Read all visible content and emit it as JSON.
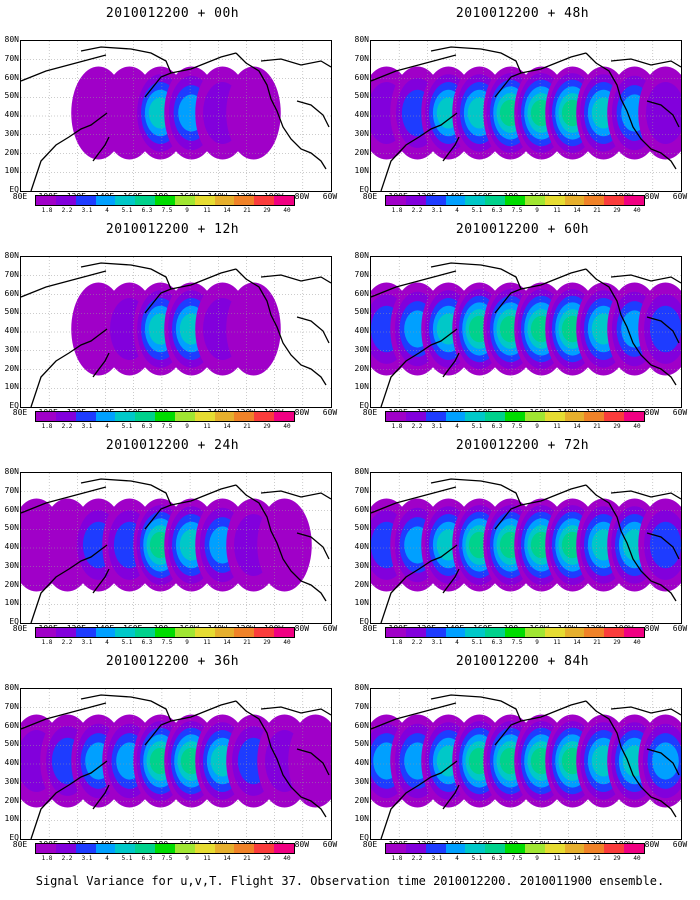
{
  "panels": [
    {
      "title": "2010012200 + 00h",
      "field": [
        0,
        0,
        0.05,
        0.1,
        0.45,
        0.4,
        0.15,
        0.05,
        0,
        0
      ]
    },
    {
      "title": "2010012200 + 48h",
      "field": [
        0.2,
        0.3,
        0.45,
        0.5,
        0.55,
        0.6,
        0.55,
        0.45,
        0.35,
        0.2
      ]
    },
    {
      "title": "2010012200 + 12h",
      "field": [
        0,
        0,
        0.05,
        0.15,
        0.5,
        0.45,
        0.2,
        0.05,
        0,
        0
      ]
    },
    {
      "title": "2010012200 + 60h",
      "field": [
        0.25,
        0.35,
        0.5,
        0.55,
        0.6,
        0.6,
        0.55,
        0.5,
        0.4,
        0.25
      ]
    },
    {
      "title": "2010012200 + 24h",
      "field": [
        0.05,
        0.1,
        0.25,
        0.3,
        0.55,
        0.5,
        0.35,
        0.15,
        0.05,
        0
      ]
    },
    {
      "title": "2010012200 + 72h",
      "field": [
        0.3,
        0.4,
        0.5,
        0.55,
        0.6,
        0.6,
        0.55,
        0.5,
        0.45,
        0.3
      ]
    },
    {
      "title": "2010012200 + 36h",
      "field": [
        0.2,
        0.3,
        0.35,
        0.4,
        0.6,
        0.55,
        0.45,
        0.3,
        0.15,
        0.05
      ]
    },
    {
      "title": "2010012200 + 84h",
      "field": [
        0.35,
        0.4,
        0.5,
        0.55,
        0.6,
        0.6,
        0.55,
        0.5,
        0.45,
        0.35
      ]
    }
  ],
  "lat_labels": [
    "80N",
    "70N",
    "60N",
    "50N",
    "40N",
    "30N",
    "20N",
    "10N",
    "EQ"
  ],
  "lon_labels": [
    "80E",
    "100E",
    "120E",
    "140E",
    "160E",
    "180",
    "160W",
    "140W",
    "120W",
    "100W",
    "80W",
    "60W"
  ],
  "colorbar": {
    "labels": [
      "1.8",
      "2.2",
      "3.1",
      "4",
      "5.1",
      "6.3",
      "7.5",
      "9",
      "11",
      "14",
      "21",
      "29",
      "40"
    ],
    "colors": [
      "#a000c8",
      "#8200dc",
      "#1e3cff",
      "#00a0ff",
      "#00c8c8",
      "#00d28c",
      "#00dc00",
      "#a0e632",
      "#e6dc32",
      "#e6af2d",
      "#f08228",
      "#fa3c3c",
      "#f00082"
    ]
  },
  "caption": "Signal Variance for u,v,T. Flight 37. Observation time 2010012200. 2010011900 ensemble."
}
